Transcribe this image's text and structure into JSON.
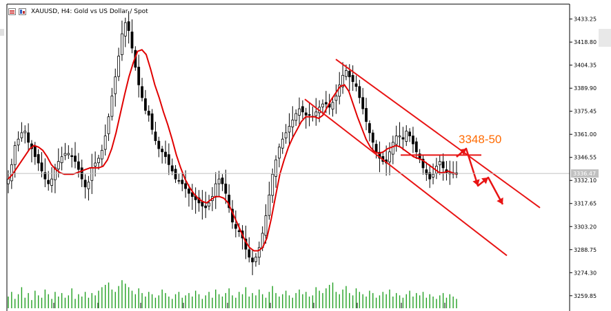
{
  "window": {
    "title": "XAUUSD, H4:  Gold vs US Dollar / Spot"
  },
  "colors": {
    "background": "#ffffff",
    "candle": "#000000",
    "moving_average": "#e00000",
    "channel": "#e81414",
    "annotation": "#ff6a00",
    "volume": "#22a022",
    "grid": "#c8c8c8",
    "price_line": "#c0c0c0"
  },
  "annotation": {
    "label": "3348-50"
  },
  "chart_data": {
    "type": "candlestick",
    "symbol": "XAUUSD",
    "timeframe": "H4",
    "y_axis": {
      "min": 3252.0,
      "max": 3440.0,
      "tick_labels": [
        "3433.25",
        "3418.80",
        "3404.35",
        "3389.90",
        "3375.45",
        "3361.00",
        "3346.55",
        "3332.10",
        "3317.65",
        "3303.20",
        "3288.75",
        "3274.30",
        "3259.85"
      ]
    },
    "current_price": "3336.47",
    "resistance_level": 3348.0,
    "close_series": [
      3333,
      3342,
      3354,
      3358,
      3362,
      3363,
      3356,
      3352,
      3347,
      3343,
      3338,
      3333,
      3330,
      3333,
      3340,
      3344,
      3347,
      3349,
      3349,
      3347,
      3344,
      3339,
      3333,
      3328,
      3331,
      3340,
      3343,
      3346,
      3351,
      3360,
      3372,
      3385,
      3397,
      3410,
      3424,
      3431,
      3426,
      3415,
      3403,
      3392,
      3384,
      3376,
      3373,
      3364,
      3357,
      3352,
      3350,
      3347,
      3342,
      3338,
      3333,
      3332,
      3330,
      3327,
      3324,
      3322,
      3320,
      3318,
      3316,
      3315,
      3318,
      3322,
      3330,
      3333,
      3330,
      3324,
      3315,
      3306,
      3302,
      3300,
      3296,
      3289,
      3284,
      3281,
      3284,
      3290,
      3299,
      3310,
      3323,
      3336,
      3345,
      3353,
      3358,
      3362,
      3366,
      3370,
      3374,
      3377,
      3375,
      3373,
      3373,
      3372,
      3375,
      3378,
      3380,
      3380,
      3378,
      3381,
      3385,
      3392,
      3398,
      3401,
      3397,
      3394,
      3391,
      3384,
      3377,
      3369,
      3362,
      3356,
      3350,
      3346,
      3344,
      3343,
      3350,
      3356,
      3360,
      3360,
      3358,
      3363,
      3360,
      3355,
      3350,
      3346,
      3340,
      3336,
      3333,
      3336,
      3341,
      3344,
      3340,
      3337,
      3337,
      3337,
      3336
    ],
    "moving_average": [
      3333,
      3336,
      3340,
      3344,
      3348,
      3352,
      3354,
      3353,
      3351,
      3347,
      3342,
      3339,
      3337,
      3336,
      3336,
      3336,
      3337,
      3338,
      3339,
      3340,
      3340,
      3340,
      3341,
      3345,
      3352,
      3362,
      3374,
      3386,
      3397,
      3406,
      3413,
      3414,
      3411,
      3402,
      3392,
      3384,
      3375,
      3367,
      3358,
      3348,
      3340,
      3333,
      3328,
      3324,
      3321,
      3319,
      3318,
      3320,
      3322,
      3322,
      3321,
      3318,
      3312,
      3306,
      3300,
      3294,
      3290,
      3288,
      3288,
      3290,
      3296,
      3308,
      3322,
      3336,
      3345,
      3353,
      3359,
      3364,
      3369,
      3372,
      3372,
      3372,
      3371,
      3373,
      3378,
      3383,
      3387,
      3391,
      3392,
      3388,
      3380,
      3372,
      3365,
      3358,
      3353,
      3350,
      3349,
      3350,
      3352,
      3353,
      3354,
      3353,
      3351,
      3349,
      3347,
      3346,
      3345,
      3343,
      3341,
      3339,
      3337,
      3337,
      3338,
      3337,
      3336
    ],
    "volume_series": [
      10,
      14,
      8,
      12,
      18,
      9,
      13,
      7,
      15,
      11,
      9,
      16,
      12,
      8,
      14,
      10,
      13,
      9,
      11,
      17,
      8,
      12,
      10,
      14,
      9,
      13,
      11,
      15,
      18,
      20,
      22,
      16,
      14,
      19,
      24,
      21,
      18,
      15,
      12,
      17,
      13,
      10,
      14,
      12,
      9,
      11,
      16,
      13,
      10,
      8,
      12,
      14,
      9,
      11,
      13,
      10,
      15,
      12,
      8,
      11,
      14,
      9,
      16,
      12,
      10,
      13,
      17,
      11,
      9,
      14,
      12,
      18,
      10,
      13,
      11,
      16,
      12,
      9,
      14,
      19,
      13,
      10,
      12,
      15,
      11,
      9,
      13,
      16,
      12,
      14,
      10,
      11,
      18,
      15,
      13,
      17,
      20,
      22,
      14,
      12,
      16,
      19,
      13,
      11,
      17,
      14,
      12,
      10,
      15,
      13,
      9,
      11,
      14,
      12,
      16,
      10,
      13,
      11,
      9,
      12,
      15,
      10,
      13,
      11,
      14,
      9,
      12,
      10,
      8,
      11,
      13,
      9,
      12,
      10,
      8
    ]
  }
}
